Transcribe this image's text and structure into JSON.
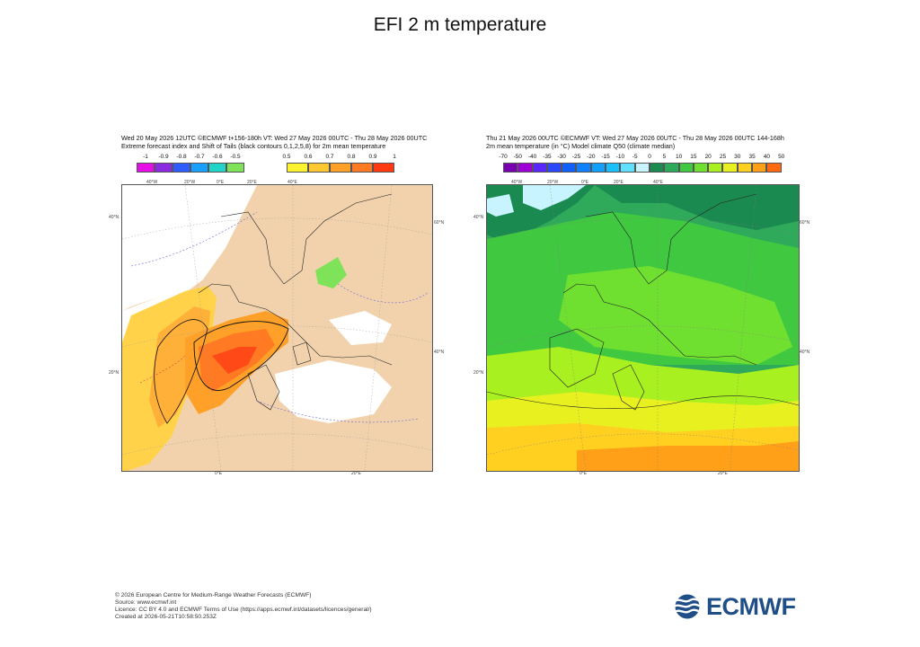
{
  "title": "EFI 2 m temperature",
  "left_panel": {
    "header_line1": "Wed 20 May 2026 12UTC ©ECMWF t+156-180h  VT: Wed 27 May 2026 00UTC - Thu 28 May 2026 00UTC",
    "header_line2": "Extreme forecast index and Shift of Tails (black contours 0,1,2,5,8) for 2m mean temperature",
    "neg_colorbar": {
      "labels": [
        "-1",
        "-0.9",
        "-0.8",
        "-0.7",
        "-0.6",
        "-0.5"
      ],
      "colors": [
        "#e60ee6",
        "#8a2be2",
        "#2f5cff",
        "#18a0ff",
        "#22d3c8",
        "#7fe35a"
      ]
    },
    "pos_colorbar": {
      "labels": [
        "0.5",
        "0.6",
        "0.7",
        "0.8",
        "0.9",
        "1"
      ],
      "colors": [
        "#fff230",
        "#ffc830",
        "#ffa028",
        "#ff7a22",
        "#ff3a10"
      ]
    },
    "lon_ticks_top": [
      "40°W",
      "20°W",
      "0°E",
      "20°E",
      "40°E"
    ],
    "lon_ticks_bottom": [
      "0°E",
      "20°E"
    ],
    "lat_ticks_left": [
      "40°N",
      "20°N"
    ],
    "lat_ticks_right": [
      "60°N",
      "40°N"
    ]
  },
  "right_panel": {
    "header_line1": "Thu 21 May 2026 00UTC ©ECMWF VT: Wed 27 May 2026 00UTC - Thu 28 May 2026 00UTC   144-168h",
    "header_line2": "2m mean temperature (in °C)  Model climate Q50 (climate median)",
    "colorbar": {
      "labels": [
        "-70",
        "-50",
        "-40",
        "-35",
        "-30",
        "-25",
        "-20",
        "-15",
        "-10",
        "-5",
        "0",
        "5",
        "10",
        "15",
        "20",
        "25",
        "30",
        "35",
        "40",
        "50"
      ],
      "colors": [
        "#7a00b4",
        "#a000d8",
        "#5a28ff",
        "#2c48ff",
        "#1060ff",
        "#1080ff",
        "#10a0ff",
        "#18c0ff",
        "#60e0ff",
        "#c8f4ff",
        "#1a8a50",
        "#2aaa5a",
        "#40c840",
        "#70e030",
        "#a8f020",
        "#e8f020",
        "#ffd020",
        "#ffa018",
        "#ff6a10"
      ]
    },
    "lon_ticks_top": [
      "40°W",
      "20°W",
      "0°E",
      "20°E",
      "40°E"
    ],
    "lon_ticks_bottom": [
      "0°E",
      "20°E"
    ],
    "lat_ticks_left": [
      "40°N",
      "20°N"
    ],
    "lat_ticks_right": [
      "60°N",
      "40°N"
    ]
  },
  "footer": {
    "line1": "© 2026 European Centre for Medium-Range Weather Forecasts (ECMWF)",
    "line2": "Source: www.ecmwf.int",
    "line3": "Licence: CC BY 4.0 and ECMWF Terms of Use (https://apps.ecmwf.int/datasets/licences/general/)",
    "line4": "Created at 2026-05-21T10:58:50.253Z"
  },
  "logo_text": "ECMWF"
}
